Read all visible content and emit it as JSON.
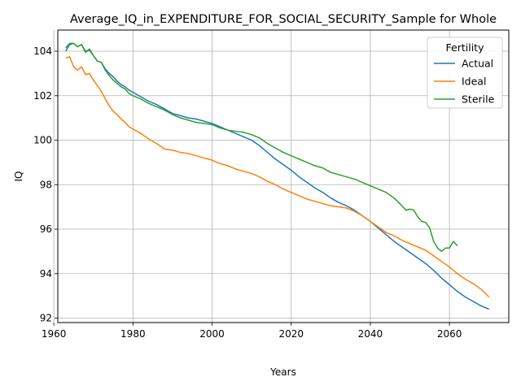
{
  "chart_data": {
    "type": "line",
    "title": "Average_IQ_in_EXPENDITURE_FOR_SOCIAL_SECURITY_Sample for Whole",
    "xlabel": "Years",
    "ylabel": "IQ",
    "xlim": [
      1961,
      2075
    ],
    "ylim": [
      91.8,
      104.95
    ],
    "x_ticks": [
      1960,
      1980,
      2000,
      2020,
      2040,
      2060
    ],
    "y_ticks": [
      92,
      94,
      96,
      98,
      100,
      102,
      104
    ],
    "grid": true,
    "legend": {
      "title": "Fertility",
      "position": "top-right"
    },
    "series": [
      {
        "name": "Actual",
        "color": "#1f77b4",
        "points": [
          [
            1963,
            104.0
          ],
          [
            1964,
            104.3
          ],
          [
            1965,
            104.35
          ],
          [
            1966,
            104.2
          ],
          [
            1967,
            104.3
          ],
          [
            1968,
            104.0
          ],
          [
            1969,
            104.05
          ],
          [
            1970,
            103.8
          ],
          [
            1971,
            103.55
          ],
          [
            1972,
            103.5
          ],
          [
            1973,
            103.2
          ],
          [
            1974,
            103.0
          ],
          [
            1975,
            102.85
          ],
          [
            1976,
            102.65
          ],
          [
            1977,
            102.5
          ],
          [
            1978,
            102.4
          ],
          [
            1979,
            102.25
          ],
          [
            1980,
            102.15
          ],
          [
            1982,
            101.95
          ],
          [
            1984,
            101.75
          ],
          [
            1986,
            101.6
          ],
          [
            1988,
            101.4
          ],
          [
            1990,
            101.2
          ],
          [
            1992,
            101.1
          ],
          [
            1994,
            101.0
          ],
          [
            1996,
            100.95
          ],
          [
            1998,
            100.85
          ],
          [
            2000,
            100.75
          ],
          [
            2002,
            100.6
          ],
          [
            2004,
            100.45
          ],
          [
            2006,
            100.3
          ],
          [
            2008,
            100.15
          ],
          [
            2010,
            100.0
          ],
          [
            2012,
            99.75
          ],
          [
            2014,
            99.45
          ],
          [
            2016,
            99.15
          ],
          [
            2018,
            98.9
          ],
          [
            2020,
            98.65
          ],
          [
            2022,
            98.35
          ],
          [
            2024,
            98.1
          ],
          [
            2026,
            97.85
          ],
          [
            2028,
            97.65
          ],
          [
            2030,
            97.4
          ],
          [
            2032,
            97.2
          ],
          [
            2034,
            97.05
          ],
          [
            2036,
            96.85
          ],
          [
            2038,
            96.6
          ],
          [
            2040,
            96.35
          ],
          [
            2042,
            96.05
          ],
          [
            2044,
            95.75
          ],
          [
            2046,
            95.45
          ],
          [
            2048,
            95.2
          ],
          [
            2050,
            94.95
          ],
          [
            2052,
            94.7
          ],
          [
            2054,
            94.45
          ],
          [
            2056,
            94.15
          ],
          [
            2058,
            93.8
          ],
          [
            2060,
            93.5
          ],
          [
            2062,
            93.2
          ],
          [
            2064,
            92.95
          ],
          [
            2066,
            92.75
          ],
          [
            2068,
            92.55
          ],
          [
            2070,
            92.4
          ]
        ]
      },
      {
        "name": "Ideal",
        "color": "#ff7f0e",
        "points": [
          [
            1963,
            103.7
          ],
          [
            1964,
            103.75
          ],
          [
            1965,
            103.3
          ],
          [
            1966,
            103.15
          ],
          [
            1967,
            103.3
          ],
          [
            1968,
            102.95
          ],
          [
            1969,
            103.0
          ],
          [
            1970,
            102.7
          ],
          [
            1971,
            102.45
          ],
          [
            1972,
            102.2
          ],
          [
            1973,
            101.85
          ],
          [
            1974,
            101.55
          ],
          [
            1975,
            101.3
          ],
          [
            1976,
            101.15
          ],
          [
            1977,
            100.95
          ],
          [
            1978,
            100.8
          ],
          [
            1979,
            100.6
          ],
          [
            1980,
            100.5
          ],
          [
            1982,
            100.3
          ],
          [
            1984,
            100.05
          ],
          [
            1986,
            99.85
          ],
          [
            1988,
            99.6
          ],
          [
            1990,
            99.55
          ],
          [
            1992,
            99.45
          ],
          [
            1994,
            99.4
          ],
          [
            1996,
            99.3
          ],
          [
            1998,
            99.2
          ],
          [
            2000,
            99.1
          ],
          [
            2002,
            98.95
          ],
          [
            2004,
            98.85
          ],
          [
            2006,
            98.7
          ],
          [
            2008,
            98.6
          ],
          [
            2010,
            98.5
          ],
          [
            2012,
            98.35
          ],
          [
            2014,
            98.15
          ],
          [
            2016,
            98.0
          ],
          [
            2018,
            97.8
          ],
          [
            2020,
            97.65
          ],
          [
            2022,
            97.5
          ],
          [
            2024,
            97.35
          ],
          [
            2026,
            97.25
          ],
          [
            2028,
            97.15
          ],
          [
            2030,
            97.05
          ],
          [
            2032,
            97.0
          ],
          [
            2034,
            96.95
          ],
          [
            2036,
            96.8
          ],
          [
            2038,
            96.6
          ],
          [
            2040,
            96.35
          ],
          [
            2042,
            96.1
          ],
          [
            2044,
            95.85
          ],
          [
            2046,
            95.7
          ],
          [
            2048,
            95.5
          ],
          [
            2050,
            95.35
          ],
          [
            2052,
            95.2
          ],
          [
            2054,
            95.05
          ],
          [
            2056,
            94.8
          ],
          [
            2058,
            94.55
          ],
          [
            2060,
            94.3
          ],
          [
            2062,
            94.0
          ],
          [
            2064,
            93.75
          ],
          [
            2066,
            93.55
          ],
          [
            2068,
            93.3
          ],
          [
            2070,
            92.95
          ]
        ]
      },
      {
        "name": "Sterile",
        "color": "#2ca02c",
        "points": [
          [
            1963,
            104.15
          ],
          [
            1964,
            104.35
          ],
          [
            1965,
            104.35
          ],
          [
            1966,
            104.2
          ],
          [
            1967,
            104.3
          ],
          [
            1968,
            103.95
          ],
          [
            1969,
            104.1
          ],
          [
            1970,
            103.8
          ],
          [
            1971,
            103.55
          ],
          [
            1972,
            103.5
          ],
          [
            1973,
            103.15
          ],
          [
            1974,
            102.9
          ],
          [
            1975,
            102.7
          ],
          [
            1976,
            102.55
          ],
          [
            1977,
            102.4
          ],
          [
            1978,
            102.3
          ],
          [
            1979,
            102.1
          ],
          [
            1980,
            102.0
          ],
          [
            1982,
            101.85
          ],
          [
            1984,
            101.65
          ],
          [
            1986,
            101.5
          ],
          [
            1988,
            101.35
          ],
          [
            1990,
            101.15
          ],
          [
            1992,
            101.0
          ],
          [
            1994,
            100.9
          ],
          [
            1996,
            100.8
          ],
          [
            1998,
            100.75
          ],
          [
            2000,
            100.7
          ],
          [
            2002,
            100.55
          ],
          [
            2004,
            100.45
          ],
          [
            2006,
            100.4
          ],
          [
            2008,
            100.35
          ],
          [
            2010,
            100.25
          ],
          [
            2012,
            100.1
          ],
          [
            2014,
            99.85
          ],
          [
            2016,
            99.65
          ],
          [
            2018,
            99.45
          ],
          [
            2020,
            99.3
          ],
          [
            2022,
            99.15
          ],
          [
            2024,
            99.0
          ],
          [
            2026,
            98.85
          ],
          [
            2028,
            98.75
          ],
          [
            2030,
            98.55
          ],
          [
            2032,
            98.45
          ],
          [
            2034,
            98.35
          ],
          [
            2036,
            98.25
          ],
          [
            2038,
            98.1
          ],
          [
            2040,
            97.95
          ],
          [
            2042,
            97.8
          ],
          [
            2044,
            97.65
          ],
          [
            2046,
            97.4
          ],
          [
            2048,
            97.05
          ],
          [
            2049,
            96.85
          ],
          [
            2050,
            96.9
          ],
          [
            2051,
            96.85
          ],
          [
            2052,
            96.55
          ],
          [
            2053,
            96.35
          ],
          [
            2054,
            96.3
          ],
          [
            2055,
            96.05
          ],
          [
            2056,
            95.45
          ],
          [
            2057,
            95.15
          ],
          [
            2058,
            95.0
          ],
          [
            2059,
            95.15
          ],
          [
            2060,
            95.15
          ],
          [
            2061,
            95.45
          ],
          [
            2062,
            95.25
          ]
        ]
      }
    ]
  }
}
